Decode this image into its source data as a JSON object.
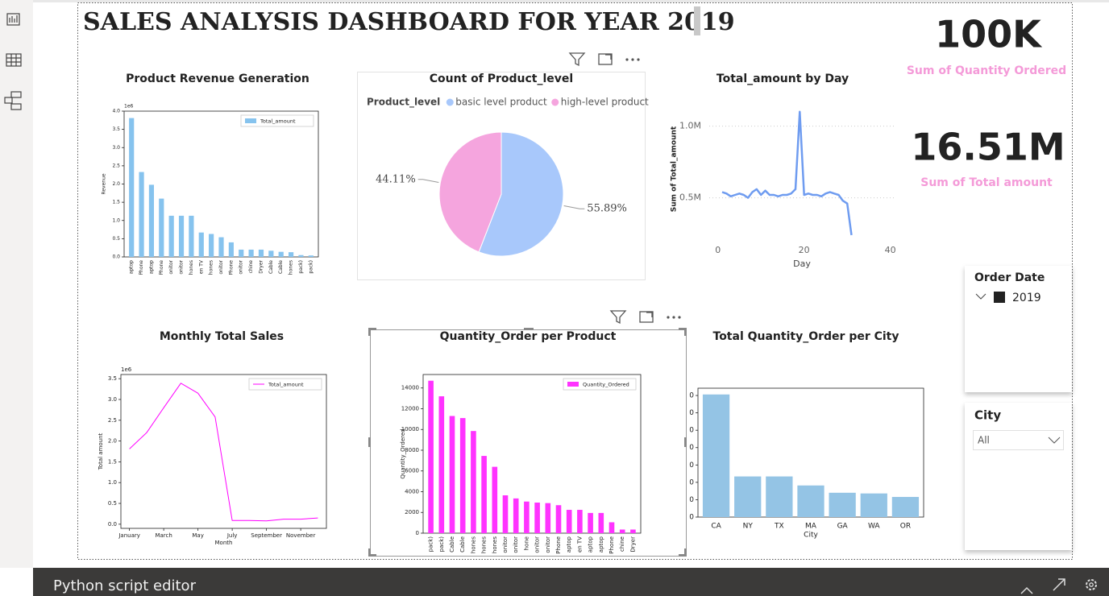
{
  "header": {
    "title": "SALES ANALYSIS DASHBOARD FOR YEAR 2019"
  },
  "cards": [
    {
      "value": "100K",
      "label": "Sum of Quantity Ordered"
    },
    {
      "value": "16.51M",
      "label": "Sum of Total amount"
    }
  ],
  "slicers": [
    {
      "title": "Order Date",
      "item": "2019"
    },
    {
      "title": "City",
      "item": "All"
    }
  ],
  "footer": {
    "label": "Python script editor"
  },
  "chart_data": [
    {
      "type": "bar",
      "title": "Product Revenue Generation",
      "categories": [
        "aptop",
        "Phone",
        "aptop",
        "Phone",
        "onitor",
        "onitor",
        "hones",
        "en TV",
        "hones",
        "onitor",
        "Phone",
        "onitor",
        "chine",
        "Dryer",
        "Cable",
        "Cable",
        "hones",
        "pack)",
        "pack)"
      ],
      "series": [
        {
          "name": "Total_amount",
          "color": "#86c3ee",
          "values": [
            3.81,
            2.33,
            1.98,
            1.6,
            1.13,
            1.13,
            1.13,
            0.67,
            0.63,
            0.54,
            0.4,
            0.2,
            0.2,
            0.2,
            0.17,
            0.14,
            0.13,
            0.05,
            0.04
          ]
        }
      ],
      "ylim": [
        0,
        4.0
      ],
      "yticks": [
        {
          "value": 0,
          "label": "0.0"
        },
        0.5,
        {
          "value": 1,
          "label": "1.0"
        },
        1.5,
        {
          "value": 2,
          "label": "2.0"
        },
        2.5,
        {
          "value": 3,
          "label": "3.0"
        },
        3.5,
        {
          "value": 4,
          "label": "4.0"
        }
      ],
      "y_multiplier": "1e6",
      "y_label": "Revenue",
      "legend": "upper right"
    },
    {
      "type": "pie",
      "title": "Count of Product_level",
      "legend_title": "Product_level",
      "series": [
        {
          "name": "basic level product",
          "color": "#a8c8fb"
        },
        {
          "name": "high-level product",
          "color": "#f5a5de"
        }
      ],
      "values": [
        55.89,
        44.11
      ],
      "value_labels": [
        "55.89%",
        "44.11%"
      ]
    },
    {
      "type": "line",
      "title": "Total_amount by Day",
      "x": [
        1,
        2,
        3,
        4,
        5,
        6,
        7,
        8,
        9,
        10,
        11,
        12,
        13,
        14,
        15,
        16,
        17,
        18,
        19,
        20,
        21,
        22,
        23,
        24,
        25,
        26,
        27,
        28,
        29,
        30,
        31
      ],
      "series": [
        {
          "name": "Sum of Total_amount",
          "color": "#6f9cf0",
          "values": [
            0.54,
            0.53,
            0.51,
            0.52,
            0.53,
            0.52,
            0.5,
            0.54,
            0.56,
            0.52,
            0.55,
            0.52,
            0.52,
            0.51,
            0.52,
            0.52,
            0.53,
            0.56,
            1.1,
            0.52,
            0.53,
            0.52,
            0.52,
            0.51,
            0.53,
            0.54,
            0.53,
            0.52,
            0.48,
            0.46,
            0.24
          ]
        }
      ],
      "xlim": [
        -2,
        41
      ],
      "xticks": [
        0,
        20,
        40
      ],
      "ylim": [
        0.2,
        1.2
      ],
      "yticks": [
        {
          "value": 0.5,
          "label": "0.5M"
        },
        {
          "value": 1,
          "label": "1.0M"
        }
      ],
      "x_label": "Day",
      "y_label": "Sum of Total_amount",
      "grid": true
    },
    {
      "type": "line",
      "title": "Monthly Total Sales",
      "categories": [
        "January",
        null,
        "March",
        null,
        "May",
        null,
        "July",
        null,
        "September",
        null,
        "November",
        null
      ],
      "series": [
        {
          "name": "Total_amount",
          "color": "#ff00ff",
          "values": [
            1.81,
            2.2,
            2.8,
            3.39,
            3.15,
            2.58,
            0.09,
            0.09,
            0.08,
            0.12,
            0.12,
            0.15
          ]
        }
      ],
      "ylim": [
        -0.1,
        3.6
      ],
      "yticks": [
        {
          "value": 0,
          "label": "0.0"
        },
        0.5,
        {
          "value": 1,
          "label": "1.0"
        },
        1.5,
        {
          "value": 2,
          "label": "2.0"
        },
        2.5,
        {
          "value": 3,
          "label": "3.0"
        },
        3.5
      ],
      "y_multiplier": "1e6",
      "x_label": "Month",
      "y_label": "Total amount",
      "legend": "upper right"
    },
    {
      "type": "bar",
      "title": "Quantity_Order per Product",
      "categories": [
        "pack)",
        "pack)",
        "Cable",
        "Cable",
        "hones",
        "hones",
        "hones",
        "onitor",
        "onitor",
        "hone",
        "onitor",
        "onitor",
        "Phone",
        "aptop",
        "en TV",
        "aptop",
        "aptop",
        "Phone",
        "chine",
        "Dryer"
      ],
      "series": [
        {
          "name": "Quantity_Ordered",
          "color": "#ff33ff",
          "values": [
            14700,
            13200,
            11300,
            11100,
            9850,
            7450,
            6400,
            3650,
            3350,
            3050,
            2950,
            2900,
            2700,
            2250,
            2250,
            1950,
            1950,
            1050,
            350,
            350
          ]
        }
      ],
      "ylim": [
        0,
        15300
      ],
      "yticks": [
        0,
        2000,
        4000,
        6000,
        8000,
        10000,
        12000,
        14000
      ],
      "y_label": "Quantity_Ordered",
      "legend": "upper right"
    },
    {
      "type": "bar",
      "title": "Total Quantity_Order per City",
      "categories": [
        "CA",
        "NY",
        "TX",
        "MA",
        "GA",
        "WA",
        "OR"
      ],
      "values": [
        35300,
        11700,
        11700,
        9100,
        7000,
        6800,
        5800
      ],
      "color": "#94c4e5",
      "ylim": [
        0,
        37100
      ],
      "yticks": [
        0,
        {
          "value": 5000,
          "label": "0"
        },
        {
          "value": 10000,
          "label": "0"
        },
        {
          "value": 15000,
          "label": "0"
        },
        {
          "value": 20000,
          "label": "0"
        },
        {
          "value": 25000,
          "label": "0"
        },
        {
          "value": 30000,
          "label": "0"
        },
        {
          "value": 35000,
          "label": "0"
        }
      ],
      "x_label": "City"
    }
  ]
}
